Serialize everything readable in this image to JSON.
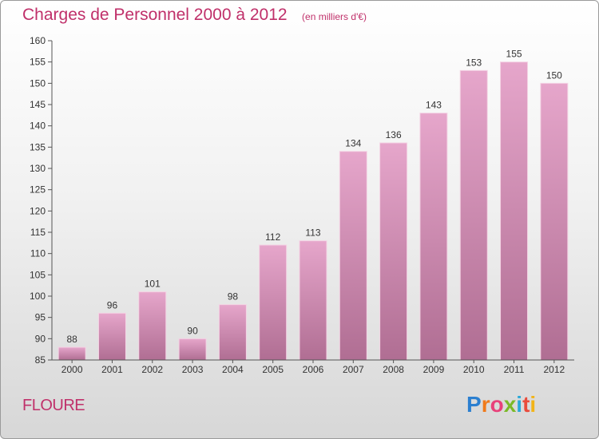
{
  "header": {
    "title": "Charges de Personnel 2000 à 2012",
    "subtitle": "(en milliers d'€)"
  },
  "footer": {
    "commune": "FLOURE",
    "brand": "Proxiti"
  },
  "colors": {
    "title": "#c0306a",
    "bar_top": "#e6a6cb",
    "bar_bottom": "#b06e93",
    "brand_letters": [
      "#2b7fd0",
      "#f07a1a",
      "#e8417a",
      "#7bb928",
      "#2aa9d8",
      "#e94b3c",
      "#f2b418"
    ]
  },
  "chart_data": {
    "type": "bar",
    "title": "Charges de Personnel 2000 à 2012",
    "subtitle": "(en milliers d'€)",
    "xlabel": "",
    "ylabel": "",
    "categories": [
      "2000",
      "2001",
      "2002",
      "2003",
      "2004",
      "2005",
      "2006",
      "2007",
      "2008",
      "2009",
      "2010",
      "2011",
      "2012"
    ],
    "values": [
      88,
      96,
      101,
      90,
      98,
      112,
      113,
      134,
      136,
      143,
      153,
      155,
      150
    ],
    "ylim": [
      85,
      160
    ],
    "yticks": [
      85,
      90,
      95,
      100,
      105,
      110,
      115,
      120,
      125,
      130,
      135,
      140,
      145,
      150,
      155,
      160
    ],
    "grid": false,
    "data_labels": true,
    "legend": "none"
  }
}
